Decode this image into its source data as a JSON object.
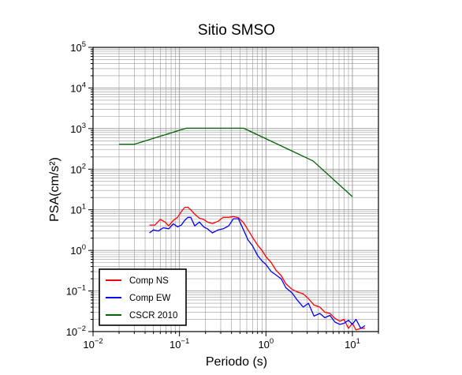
{
  "chart_data": {
    "type": "line",
    "title": "Sitio SMSO",
    "xlabel": "Periodo (s)",
    "ylabel": "PSA(cm/s²)",
    "x_scale": "log",
    "y_scale": "log",
    "xlim": [
      0.01,
      20
    ],
    "ylim": [
      0.01,
      100000
    ],
    "grid": true,
    "legend_position": "bottom-left",
    "x_ticks": [
      {
        "value": 0.01,
        "base": "10",
        "exp": "−2"
      },
      {
        "value": 0.1,
        "base": "10",
        "exp": "−1"
      },
      {
        "value": 1,
        "base": "10",
        "exp": "0"
      },
      {
        "value": 10,
        "base": "10",
        "exp": "1"
      }
    ],
    "y_ticks": [
      {
        "value": 0.01,
        "base": "10",
        "exp": "−2"
      },
      {
        "value": 0.1,
        "base": "10",
        "exp": "−1"
      },
      {
        "value": 1,
        "base": "10",
        "exp": "0"
      },
      {
        "value": 10,
        "base": "10",
        "exp": "1"
      },
      {
        "value": 100,
        "base": "10",
        "exp": "2"
      },
      {
        "value": 1000,
        "base": "10",
        "exp": "3"
      },
      {
        "value": 10000,
        "base": "10",
        "exp": "4"
      },
      {
        "value": 100000,
        "base": "10",
        "exp": "5"
      }
    ],
    "series": [
      {
        "name": "Comp NS",
        "color": "#ff0000",
        "x": [
          0.045,
          0.052,
          0.06,
          0.068,
          0.075,
          0.085,
          0.095,
          0.105,
          0.115,
          0.125,
          0.135,
          0.15,
          0.17,
          0.19,
          0.21,
          0.24,
          0.28,
          0.32,
          0.37,
          0.42,
          0.48,
          0.55,
          0.62,
          0.7,
          0.8,
          0.9,
          1.0,
          1.15,
          1.3,
          1.5,
          1.7,
          2.0,
          2.3,
          2.7,
          3.1,
          3.6,
          4.2,
          4.8,
          5.5,
          6.3,
          7.2,
          8.0,
          9.0,
          10.0,
          11.0,
          12.5,
          14.0
        ],
        "y": [
          4.2,
          4.2,
          5.8,
          5.0,
          4.0,
          5.5,
          6.5,
          9.0,
          11.5,
          11.5,
          10.0,
          7.8,
          6.2,
          5.8,
          5.0,
          4.6,
          5.2,
          6.5,
          6.5,
          6.8,
          6.4,
          4.8,
          3.2,
          2.1,
          1.35,
          1.0,
          0.7,
          0.5,
          0.33,
          0.24,
          0.15,
          0.11,
          0.095,
          0.085,
          0.065,
          0.045,
          0.04,
          0.03,
          0.028,
          0.021,
          0.018,
          0.02,
          0.012,
          0.016,
          0.011,
          0.012,
          0.012
        ]
      },
      {
        "name": "Comp EW",
        "color": "#0000ff",
        "x": [
          0.045,
          0.05,
          0.057,
          0.065,
          0.075,
          0.085,
          0.095,
          0.105,
          0.115,
          0.125,
          0.135,
          0.15,
          0.17,
          0.19,
          0.21,
          0.24,
          0.28,
          0.32,
          0.37,
          0.42,
          0.48,
          0.55,
          0.62,
          0.7,
          0.8,
          0.9,
          1.0,
          1.15,
          1.3,
          1.5,
          1.7,
          2.0,
          2.3,
          2.7,
          3.1,
          3.6,
          4.2,
          4.8,
          5.5,
          6.3,
          7.2,
          8.0,
          9.0,
          10.0,
          11.0,
          12.5,
          14.0
        ],
        "y": [
          2.7,
          3.2,
          3.0,
          3.6,
          3.4,
          4.5,
          3.8,
          4.2,
          5.5,
          6.5,
          6.5,
          4.0,
          5.0,
          3.8,
          3.4,
          2.7,
          3.2,
          3.4,
          4.0,
          6.0,
          6.0,
          3.2,
          1.8,
          1.3,
          0.75,
          0.55,
          0.45,
          0.3,
          0.25,
          0.2,
          0.12,
          0.09,
          0.06,
          0.04,
          0.05,
          0.024,
          0.028,
          0.022,
          0.025,
          0.017,
          0.015,
          0.016,
          0.019,
          0.015,
          0.02,
          0.012,
          0.014
        ]
      },
      {
        "name": "CSCR 2010",
        "color": "#006400",
        "x": [
          0.02,
          0.03,
          0.12,
          0.55,
          3.5,
          10.0
        ],
        "y": [
          410,
          410,
          1020,
          1020,
          160,
          21
        ]
      }
    ]
  }
}
